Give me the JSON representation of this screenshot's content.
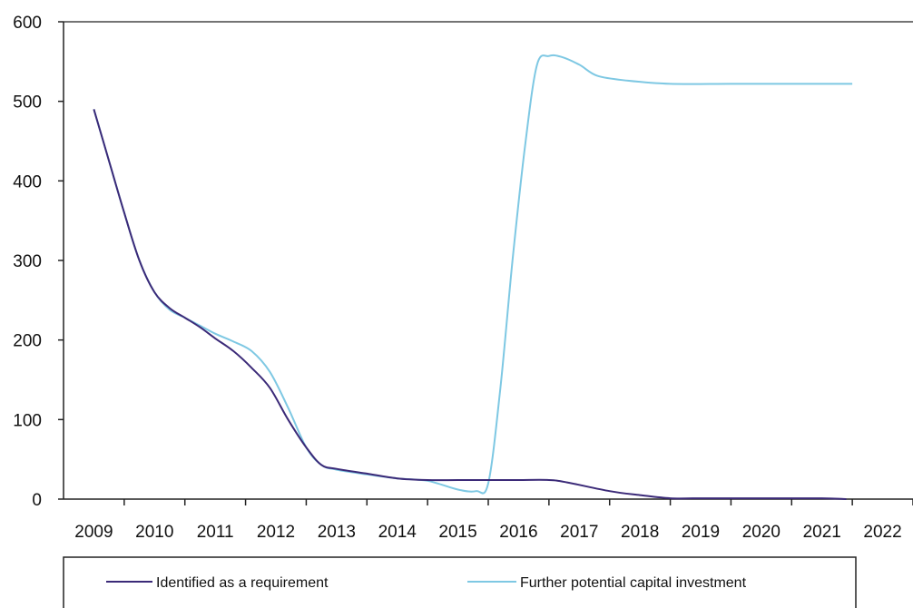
{
  "chart_data": {
    "type": "line",
    "title": "",
    "xlabel": "",
    "ylabel": "",
    "xlim": [
      2008.5,
      2022.5
    ],
    "ylim": [
      0,
      600
    ],
    "y_ticks": [
      "0",
      "100",
      "200",
      "300",
      "400",
      "500",
      "600"
    ],
    "x_ticks": [
      "2009",
      "2010",
      "2011",
      "2012",
      "2013",
      "2014",
      "2015",
      "2016",
      "2017",
      "2018",
      "2019",
      "2020",
      "2021",
      "2022"
    ],
    "grid": false,
    "legend_position": "bottom",
    "series": [
      {
        "name": "Identified as a requirement",
        "color": "#3b2a78",
        "points": [
          [
            2009.0,
            490
          ],
          [
            2009.25,
            425
          ],
          [
            2009.5,
            360
          ],
          [
            2009.75,
            300
          ],
          [
            2010.0,
            260
          ],
          [
            2010.25,
            240
          ],
          [
            2010.5,
            228
          ],
          [
            2010.75,
            216
          ],
          [
            2011.0,
            202
          ],
          [
            2011.3,
            186
          ],
          [
            2011.6,
            165
          ],
          [
            2011.9,
            140
          ],
          [
            2012.2,
            100
          ],
          [
            2012.5,
            65
          ],
          [
            2012.75,
            43
          ],
          [
            2013.0,
            38
          ],
          [
            2013.5,
            32
          ],
          [
            2014.0,
            26
          ],
          [
            2014.5,
            24
          ],
          [
            2015.0,
            24
          ],
          [
            2015.5,
            24
          ],
          [
            2016.0,
            24
          ],
          [
            2016.5,
            24
          ],
          [
            2016.8,
            21
          ],
          [
            2017.5,
            10
          ],
          [
            2018.0,
            5
          ],
          [
            2018.5,
            1
          ],
          [
            2019.0,
            1
          ],
          [
            2020.0,
            1
          ],
          [
            2021.0,
            1
          ],
          [
            2021.4,
            0
          ]
        ]
      },
      {
        "name": "Further potential capital investment",
        "color": "#7ec8e3",
        "points": [
          [
            2009.0,
            490
          ],
          [
            2009.25,
            425
          ],
          [
            2009.5,
            360
          ],
          [
            2009.75,
            300
          ],
          [
            2010.0,
            260
          ],
          [
            2010.25,
            238
          ],
          [
            2010.5,
            228
          ],
          [
            2010.75,
            218
          ],
          [
            2011.0,
            208
          ],
          [
            2011.3,
            198
          ],
          [
            2011.6,
            186
          ],
          [
            2011.9,
            160
          ],
          [
            2012.2,
            115
          ],
          [
            2012.5,
            65
          ],
          [
            2012.75,
            43
          ],
          [
            2013.0,
            37
          ],
          [
            2013.5,
            31
          ],
          [
            2014.0,
            26
          ],
          [
            2014.5,
            23
          ],
          [
            2015.0,
            12
          ],
          [
            2015.3,
            10
          ],
          [
            2015.5,
            20
          ],
          [
            2015.7,
            140
          ],
          [
            2015.9,
            300
          ],
          [
            2016.1,
            440
          ],
          [
            2016.3,
            545
          ],
          [
            2016.5,
            557
          ],
          [
            2016.7,
            556
          ],
          [
            2017.0,
            546
          ],
          [
            2017.3,
            532
          ],
          [
            2017.8,
            526
          ],
          [
            2018.5,
            522
          ],
          [
            2019.5,
            522
          ],
          [
            2020.5,
            522
          ],
          [
            2021.5,
            522
          ]
        ]
      }
    ]
  },
  "legend": {
    "items": [
      {
        "label": "Identified as a requirement",
        "color": "#3b2a78"
      },
      {
        "label": "Further potential capital investment",
        "color": "#7ec8e3"
      }
    ]
  }
}
